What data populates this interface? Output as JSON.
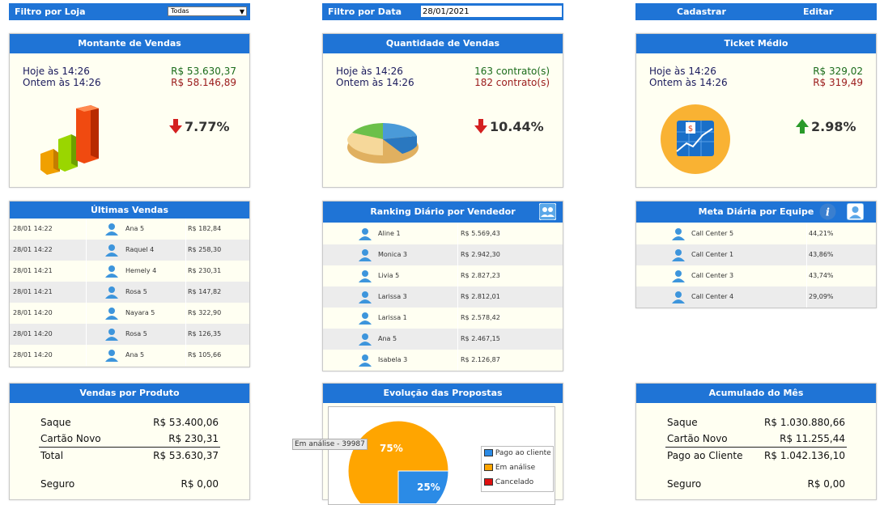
{
  "filters": {
    "store_label": "Filtro por Loja",
    "store_value": "Todas",
    "date_label": "Filtro por Data",
    "date_value": "28/01/2021",
    "register_label": "Cadastrar",
    "edit_label": "Editar"
  },
  "kpis": {
    "sales_amount": {
      "title": "Montante de Vendas",
      "today_label": "Hoje às 14:26",
      "today_value": "R$ 53.630,37",
      "yesterday_label": "Ontem às 14:26",
      "yesterday_value": "R$ 58.146,89",
      "change": "7.77%",
      "direction": "down"
    },
    "sales_quantity": {
      "title": "Quantidade de Vendas",
      "today_label": "Hoje às 14:26",
      "today_value": "163 contrato(s)",
      "yesterday_label": "Ontem às 14:26",
      "yesterday_value": "182 contrato(s)",
      "change": "10.44%",
      "direction": "down"
    },
    "avg_ticket": {
      "title": "Ticket Médio",
      "today_label": "Hoje às 14:26",
      "today_value": "R$ 329,02",
      "yesterday_label": "Ontem às 14:26",
      "yesterday_value": "R$ 319,49",
      "change": "2.98%",
      "direction": "up"
    }
  },
  "last_sales": {
    "title": "Últimas Vendas",
    "rows": [
      {
        "time": "28/01 14:22",
        "name": "Ana 5",
        "value": "R$ 182,84"
      },
      {
        "time": "28/01 14:22",
        "name": "Raquel 4",
        "value": "R$ 258,30"
      },
      {
        "time": "28/01 14:21",
        "name": "Hemely 4",
        "value": "R$ 230,31"
      },
      {
        "time": "28/01 14:21",
        "name": "Rosa 5",
        "value": "R$ 147,82"
      },
      {
        "time": "28/01 14:20",
        "name": "Nayara 5",
        "value": "R$ 322,90"
      },
      {
        "time": "28/01 14:20",
        "name": "Rosa 5",
        "value": "R$ 126,35"
      },
      {
        "time": "28/01 14:20",
        "name": "Ana 5",
        "value": "R$ 105,66"
      }
    ]
  },
  "ranking": {
    "title": "Ranking Diário por Vendedor",
    "rows": [
      {
        "name": "Aline 1",
        "value": "R$ 5.569,43"
      },
      {
        "name": "Monica 3",
        "value": "R$ 2.942,30"
      },
      {
        "name": "Livia 5",
        "value": "R$ 2.827,23"
      },
      {
        "name": "Larissa 3",
        "value": "R$ 2.812,01"
      },
      {
        "name": "Larissa 1",
        "value": "R$ 2.578,42"
      },
      {
        "name": "Ana 5",
        "value": "R$ 2.467,15"
      },
      {
        "name": "Isabela 3",
        "value": "R$ 2.126,87"
      }
    ]
  },
  "team_goal": {
    "title": "Meta Diária por Equipe",
    "rows": [
      {
        "name": "Call Center 5",
        "value": "44,21%"
      },
      {
        "name": "Call Center 1",
        "value": "43,86%"
      },
      {
        "name": "Call Center 3",
        "value": "43,74%"
      },
      {
        "name": "Call Center 4",
        "value": "29,09%"
      }
    ]
  },
  "product_sales": {
    "title": "Vendas por Produto",
    "rows": [
      {
        "label": "Saque",
        "value": "R$ 53.400,06"
      },
      {
        "label": "Cartão Novo",
        "value": "R$ 230,31"
      }
    ],
    "total_label": "Total",
    "total_value": "R$ 53.630,37",
    "extra_label": "Seguro",
    "extra_value": "R$ 0,00"
  },
  "proposals": {
    "title": "Evolução das Propostas",
    "tooltip": "Em análise - 39987",
    "legend": [
      {
        "label": "Pago ao cliente",
        "color": "#2b8be6"
      },
      {
        "label": "Em análise",
        "color": "#ffa500"
      },
      {
        "label": "Cancelado",
        "color": "#e01010"
      }
    ],
    "slice_labels": {
      "analysis": "75%",
      "paid": "25%"
    }
  },
  "chart_data": {
    "type": "pie",
    "categories": [
      "Pago ao cliente",
      "Em análise",
      "Cancelado"
    ],
    "values": [
      25,
      75,
      0
    ],
    "title": "Evolução das Propostas"
  },
  "month_total": {
    "title": "Acumulado do Mês",
    "rows": [
      {
        "label": "Saque",
        "value": "R$ 1.030.880,66"
      },
      {
        "label": "Cartão Novo",
        "value": "R$ 11.255,44"
      }
    ],
    "total_label": "Pago ao Cliente",
    "total_value": "R$ 1.042.136,10",
    "extra_label": "Seguro",
    "extra_value": "R$ 0,00"
  },
  "colors": {
    "header_blue": "#1f74d6",
    "panel_bg": "#fffff2",
    "up": "#2a9a2a",
    "down": "#d42020"
  }
}
